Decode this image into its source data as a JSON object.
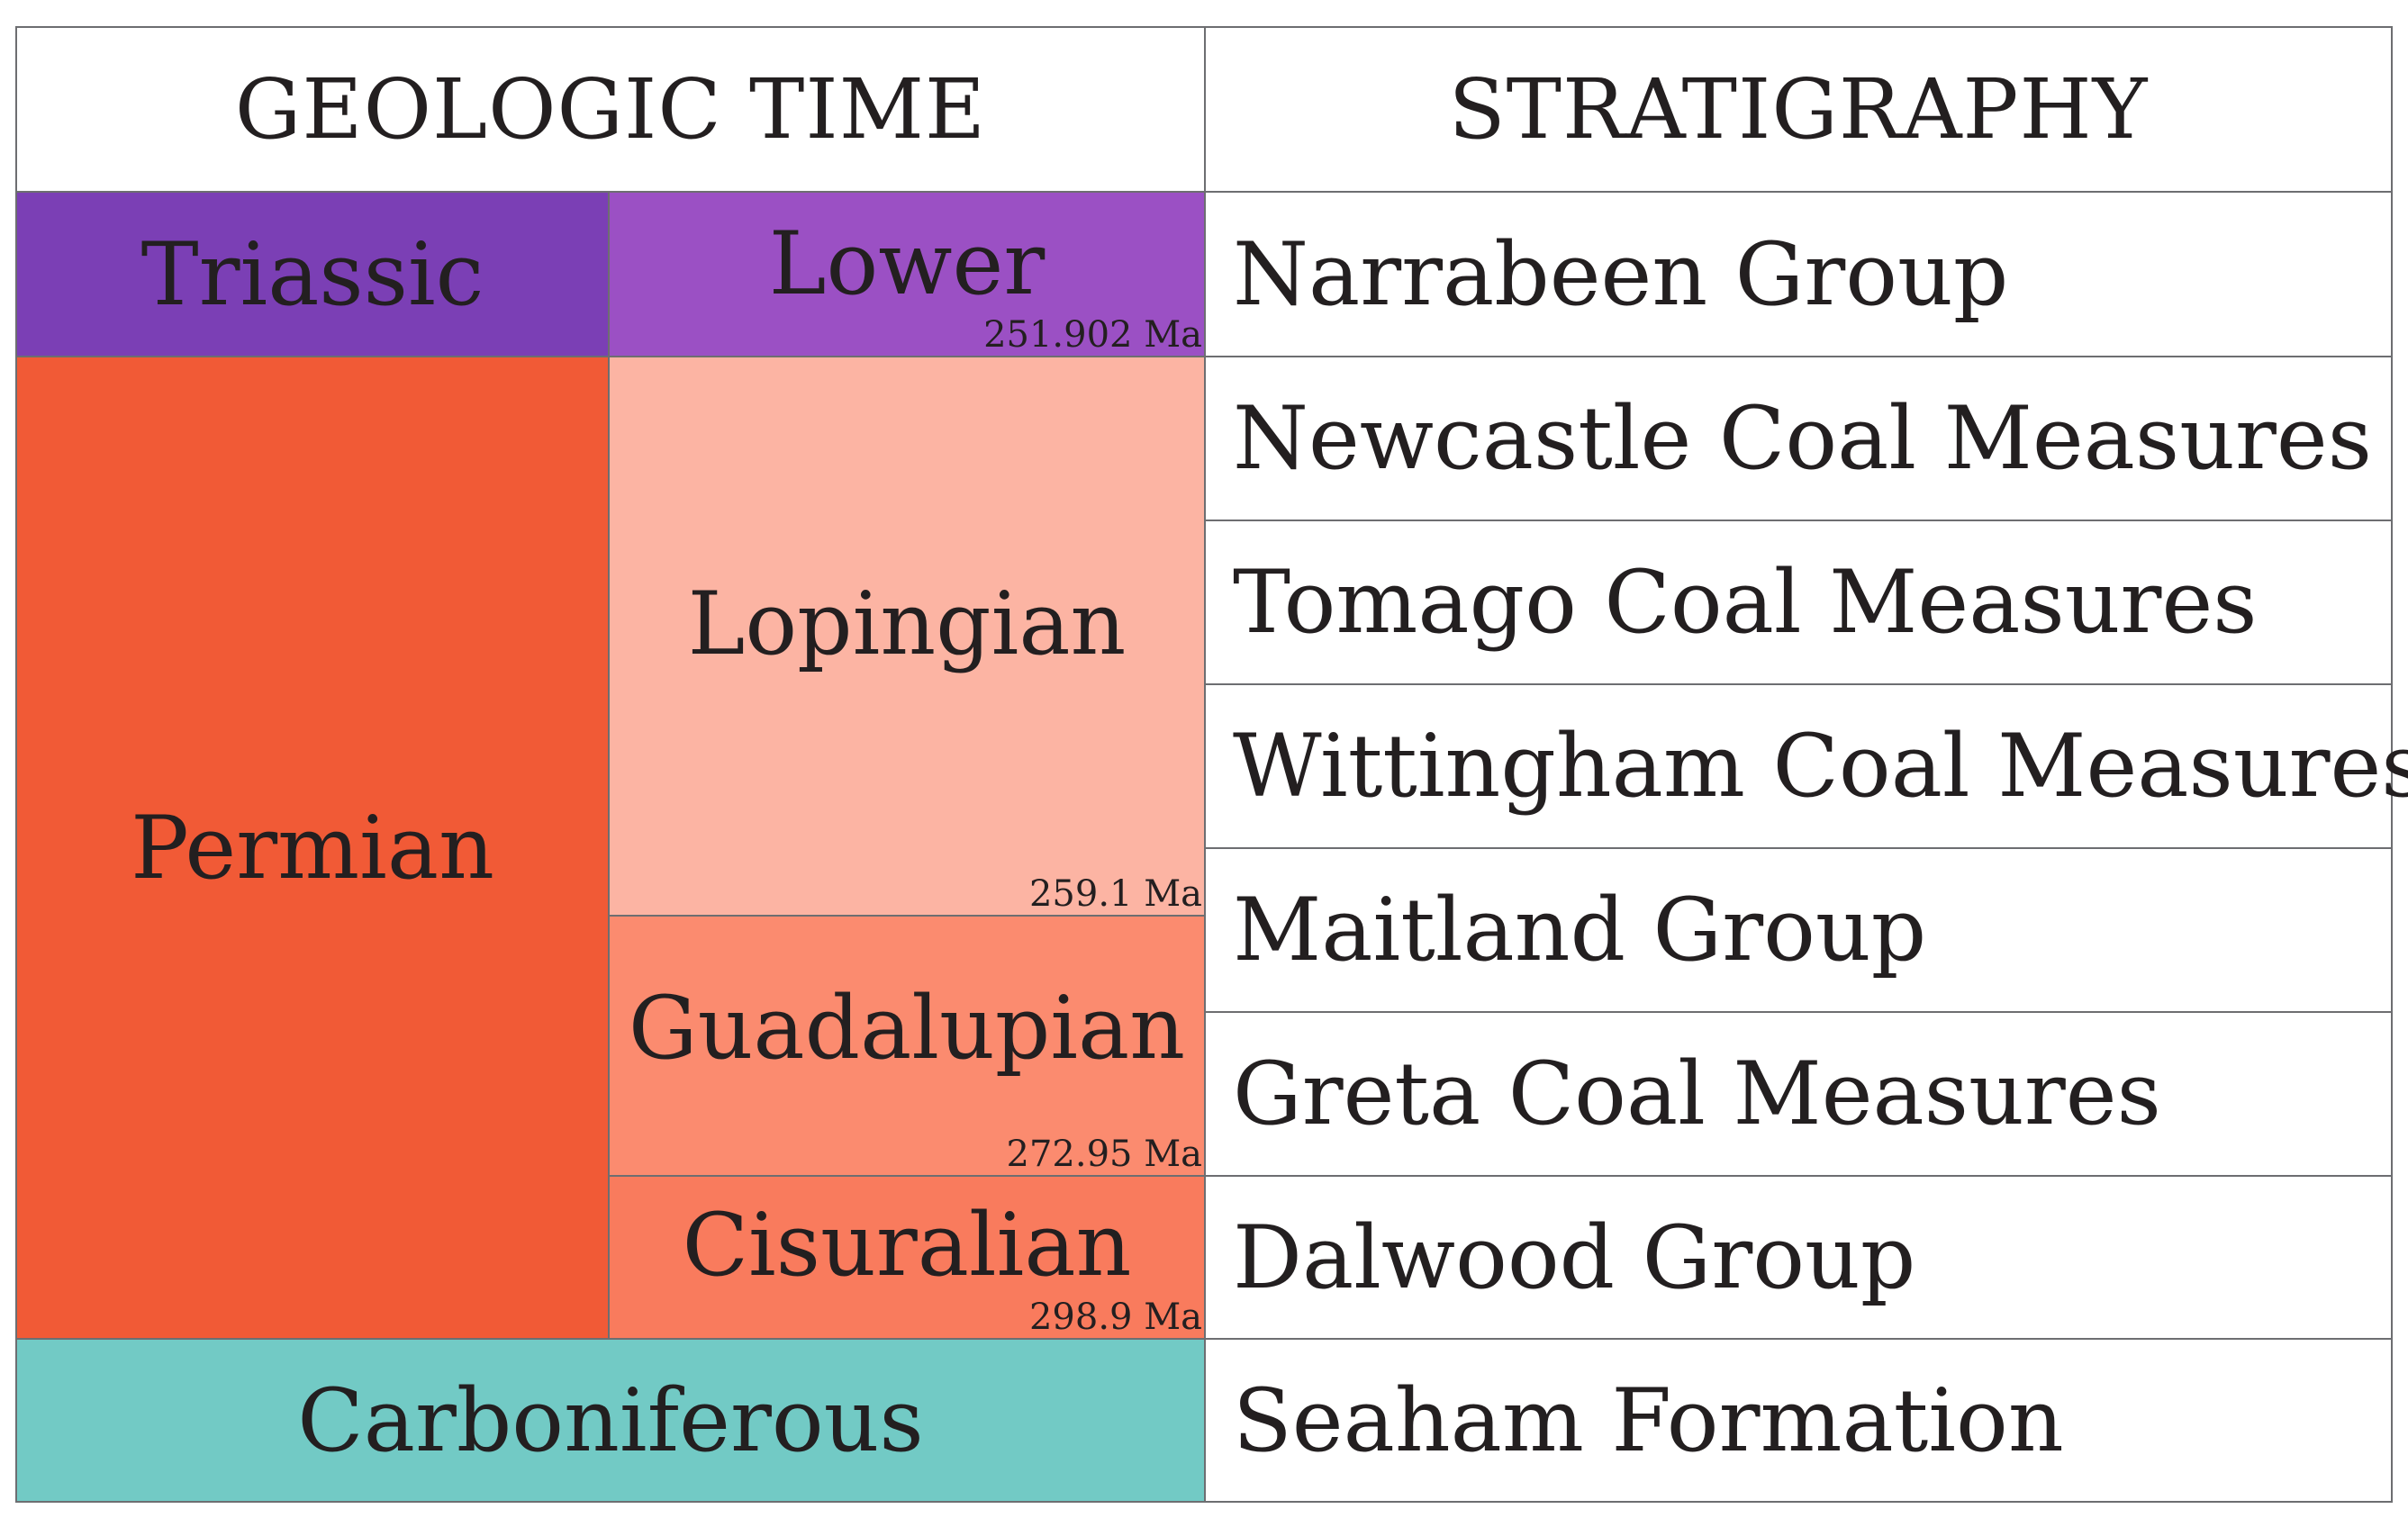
{
  "header": {
    "geologic_time": "GEOLOGIC TIME",
    "stratigraphy": "STRATIGRAPHY"
  },
  "periods": {
    "triassic": "Triassic",
    "permian": "Permian",
    "carboniferous": "Carboniferous"
  },
  "epochs": {
    "lower": {
      "label": "Lower",
      "age": "251.902 Ma"
    },
    "lopingian": {
      "label": "Lopingian",
      "age": "259.1 Ma"
    },
    "guadalupian": {
      "label": "Guadalupian",
      "age": "272.95 Ma"
    },
    "cisuralian": {
      "label": "Cisuralian",
      "age": "298.9 Ma"
    }
  },
  "stratigraphy": [
    "Narrabeen Group",
    "Newcastle Coal Measures",
    "Tomago Coal Measures",
    "Wittingham Coal Measures",
    "Maitland Group",
    "Greta Coal Measures",
    "Dalwood Group",
    "Seaham Formation"
  ],
  "colors": {
    "triassic": "#7b3fb5",
    "lower_triassic": "#9b50c4",
    "permian": "#f15a36",
    "lopingian": "#fcb4a3",
    "guadalupian": "#fb8b6f",
    "cisuralian": "#f97b5d",
    "carboniferous": "#72cac5"
  }
}
